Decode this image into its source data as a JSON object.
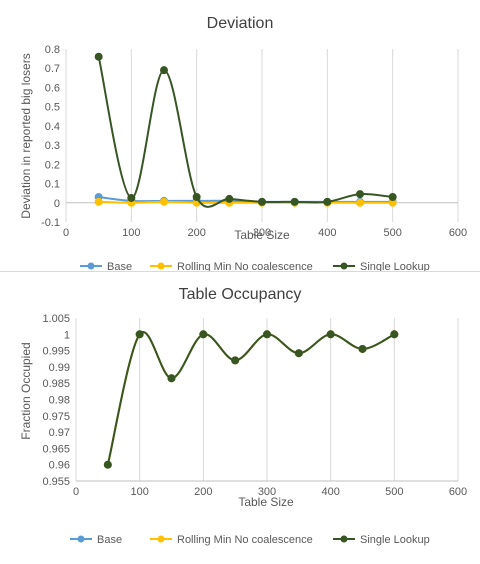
{
  "chart_data": [
    {
      "type": "line",
      "title": "Deviation",
      "xlabel": "Table Size",
      "ylabel": "Deviation in reported  big losers",
      "xlim": [
        0,
        600
      ],
      "ylim": [
        -0.1,
        0.8
      ],
      "xticks": [
        0,
        100,
        200,
        300,
        400,
        500,
        600
      ],
      "yticks": [
        -0.1,
        0,
        0.1,
        0.2,
        0.3,
        0.4,
        0.5,
        0.6,
        0.7,
        0.8
      ],
      "ytick_labels": [
        "-0.1",
        "0",
        "0.1",
        "0.2",
        "0.3",
        "0.4",
        "0.5",
        "0.6",
        "0.7",
        "0.8"
      ],
      "grid": "vertical",
      "legend": "bottom",
      "x": [
        50,
        100,
        150,
        200,
        250,
        300,
        350,
        400,
        450,
        500
      ],
      "series": [
        {
          "name": "Base",
          "color": "#5b9bd5",
          "values": [
            0.03,
            0.01,
            0.01,
            0.01,
            0.01,
            0.005,
            0.005,
            0.005,
            0.005,
            0.005
          ]
        },
        {
          "name": "Rolling Min No coalescence",
          "color": "#ffc000",
          "values": [
            0.005,
            0.0,
            0.005,
            0.0,
            0.0,
            0.0,
            0.0,
            0.0,
            0.0,
            0.0
          ]
        },
        {
          "name": "Single Lookup",
          "color": "#375623",
          "values": [
            0.76,
            0.025,
            0.69,
            0.03,
            0.02,
            0.005,
            0.005,
            0.005,
            0.045,
            0.03
          ]
        }
      ]
    },
    {
      "type": "line",
      "title": "Table Occupancy",
      "xlabel": "Table Size",
      "ylabel": "Fraction Occupied",
      "xlim": [
        0,
        600
      ],
      "ylim": [
        0.955,
        1.005
      ],
      "xticks": [
        0,
        100,
        200,
        300,
        400,
        500,
        600
      ],
      "yticks": [
        0.955,
        0.96,
        0.965,
        0.97,
        0.975,
        0.98,
        0.985,
        0.99,
        0.995,
        1,
        1.005
      ],
      "ytick_labels": [
        "0.955",
        "0.96",
        "0.965",
        "0.97",
        "0.975",
        "0.98",
        "0.985",
        "0.99",
        "0.995",
        "1",
        "1.005"
      ],
      "grid": "vertical",
      "legend": "bottom",
      "x": [
        50,
        100,
        150,
        200,
        250,
        300,
        350,
        400,
        450,
        500
      ],
      "series": [
        {
          "name": "Base",
          "color": "#5b9bd5",
          "values": [
            0.96,
            1.0,
            0.9865,
            1.0,
            0.992,
            1.0,
            0.9942,
            1.0,
            0.9955,
            1.0
          ]
        },
        {
          "name": "Rolling Min No coalescence",
          "color": "#ffc000",
          "values": [
            0.96,
            1.0,
            0.9865,
            1.0,
            0.992,
            1.0,
            0.9942,
            1.0,
            0.9955,
            1.0
          ]
        },
        {
          "name": "Single Lookup",
          "color": "#375623",
          "values": [
            0.96,
            1.0,
            0.9865,
            1.0,
            0.992,
            1.0,
            0.9942,
            1.0,
            0.9955,
            1.0
          ]
        }
      ]
    }
  ]
}
